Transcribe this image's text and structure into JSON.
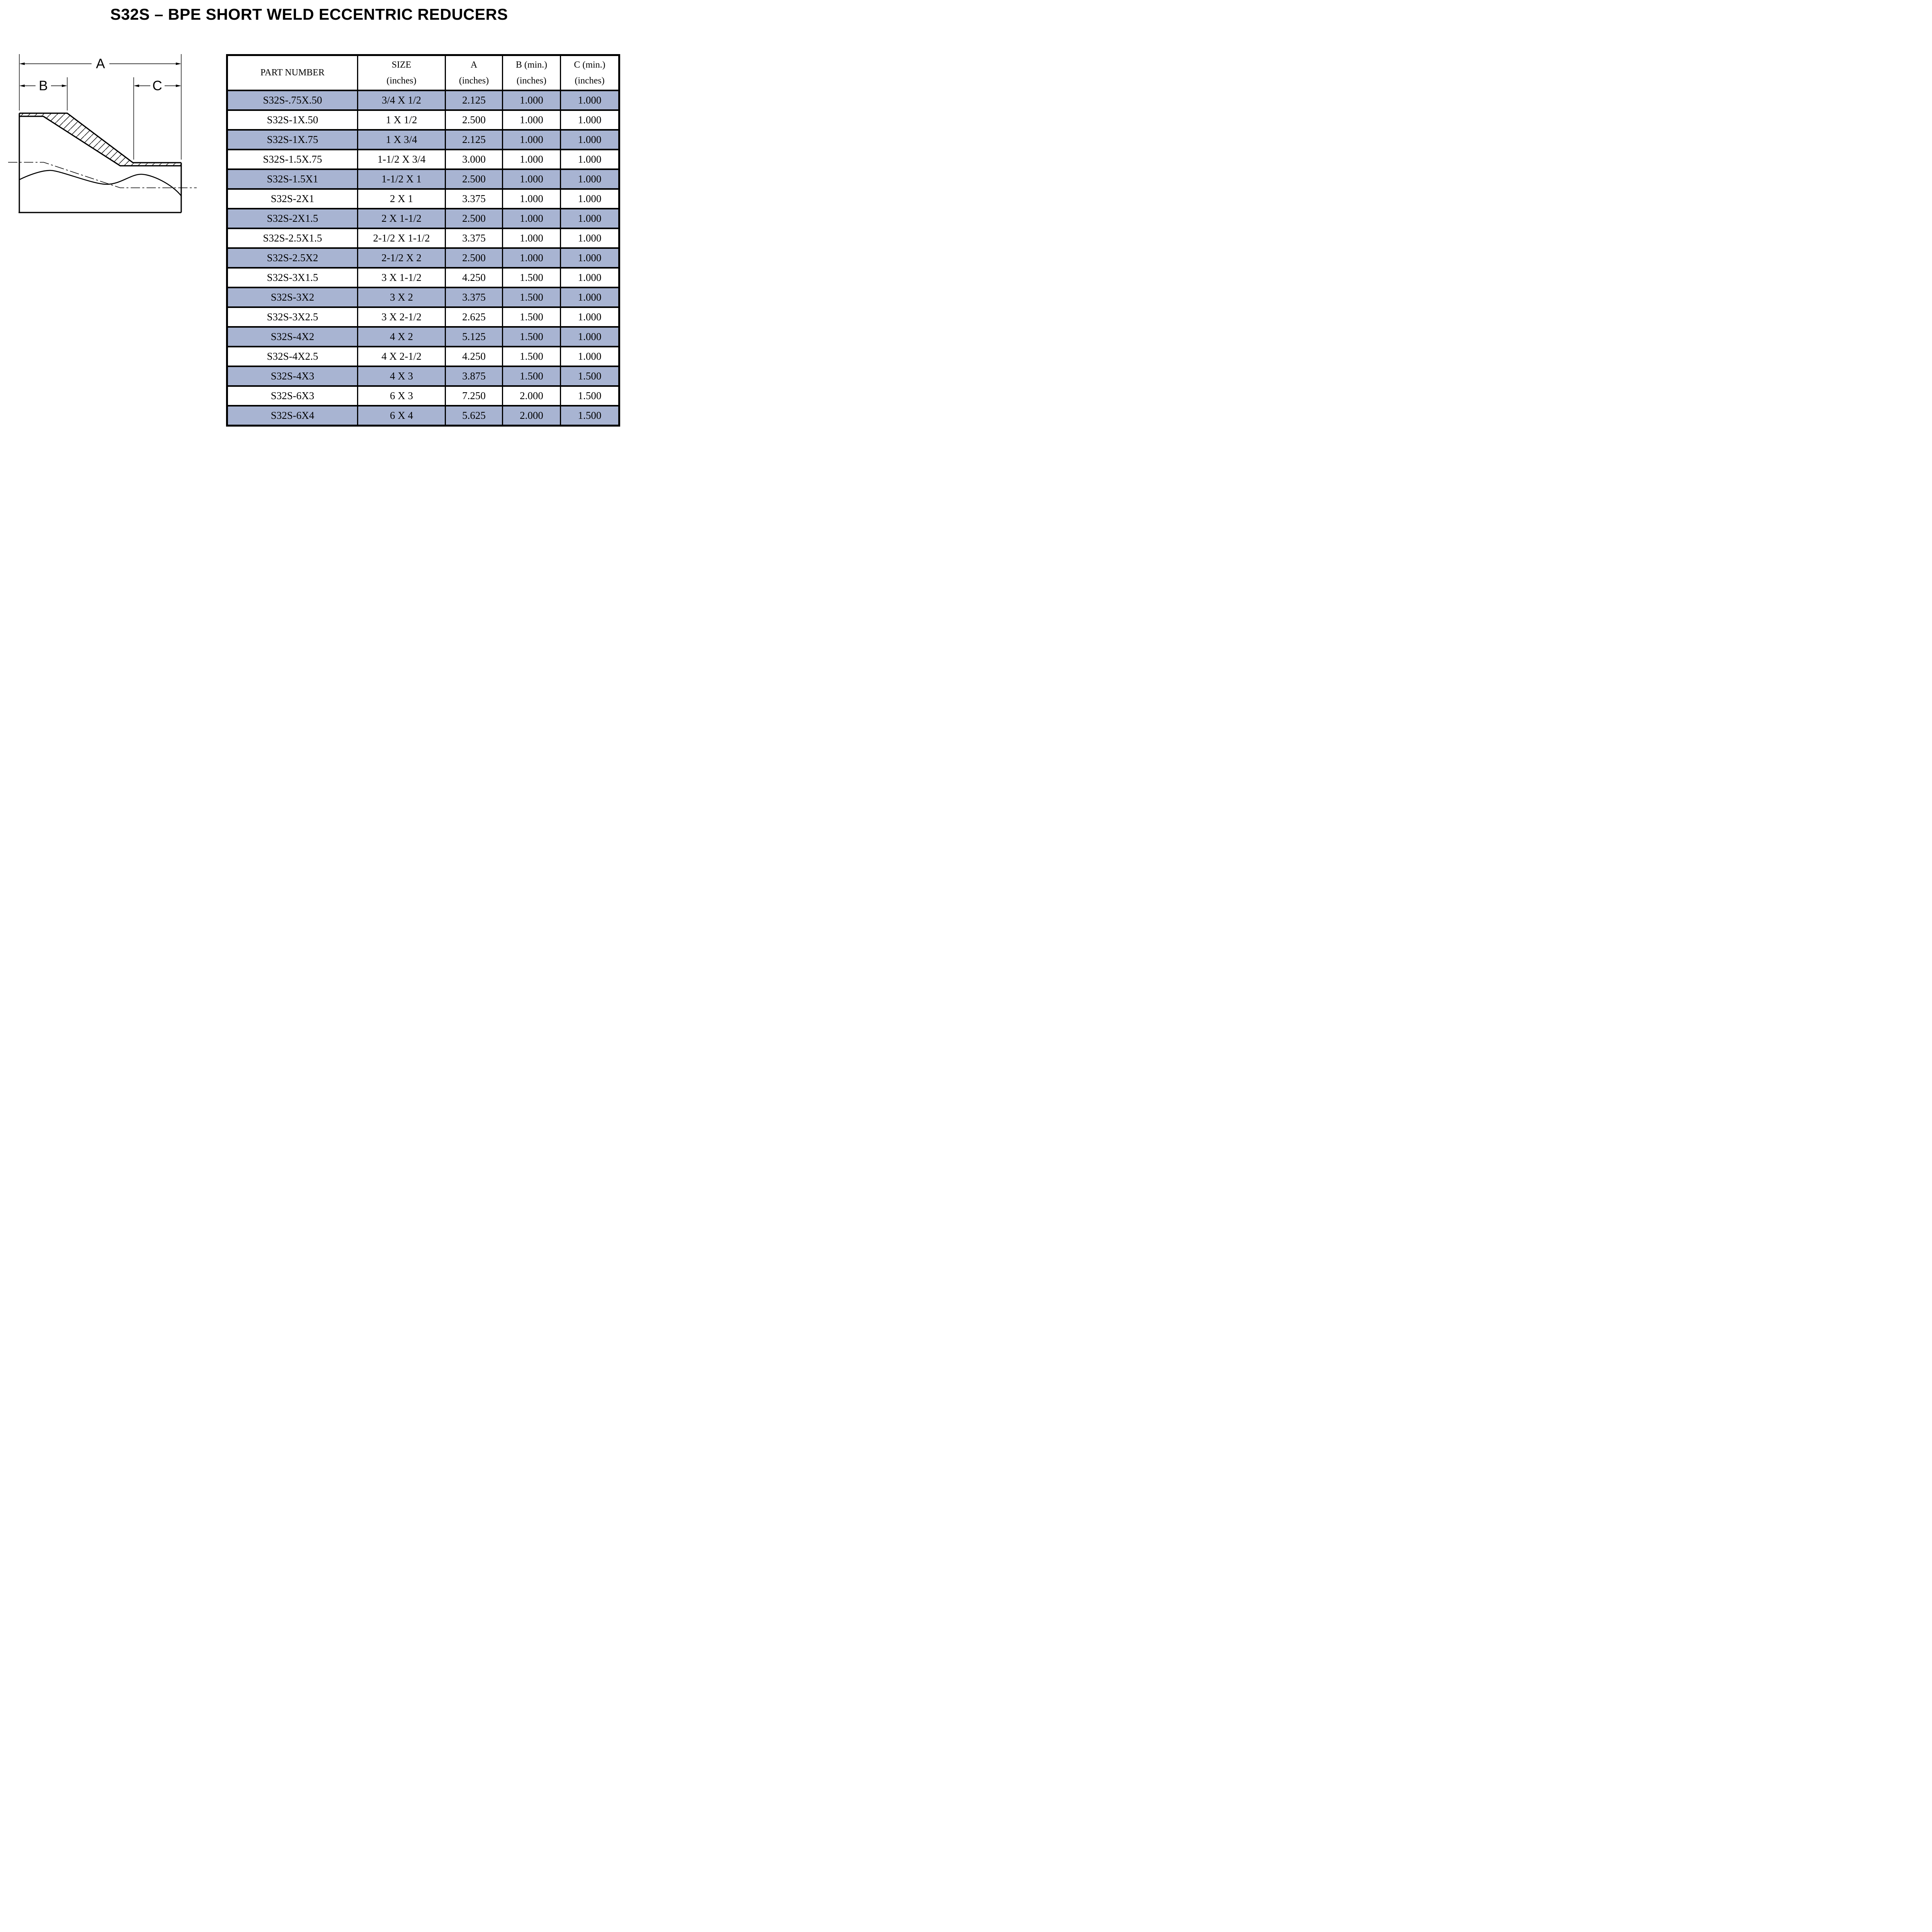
{
  "title": "S32S – BPE SHORT WELD ECCENTRIC REDUCERS",
  "diagram": {
    "label_a": "A",
    "label_b": "B",
    "label_c": "C"
  },
  "table": {
    "row_highlight_color": "#a8b4d2",
    "columns": [
      {
        "line1": "PART NUMBER",
        "line2": ""
      },
      {
        "line1": "SIZE",
        "line2": "(inches)"
      },
      {
        "line1": "A",
        "line2": "(inches)"
      },
      {
        "line1": "B (min.)",
        "line2": "(inches)"
      },
      {
        "line1": "C (min.)",
        "line2": "(inches)"
      }
    ],
    "rows": [
      [
        "S32S-.75X.50",
        "3/4 X 1/2",
        "2.125",
        "1.000",
        "1.000"
      ],
      [
        "S32S-1X.50",
        "1 X 1/2",
        "2.500",
        "1.000",
        "1.000"
      ],
      [
        "S32S-1X.75",
        "1 X 3/4",
        "2.125",
        "1.000",
        "1.000"
      ],
      [
        "S32S-1.5X.75",
        "1-1/2 X 3/4",
        "3.000",
        "1.000",
        "1.000"
      ],
      [
        "S32S-1.5X1",
        "1-1/2 X 1",
        "2.500",
        "1.000",
        "1.000"
      ],
      [
        "S32S-2X1",
        "2 X 1",
        "3.375",
        "1.000",
        "1.000"
      ],
      [
        "S32S-2X1.5",
        "2 X 1-1/2",
        "2.500",
        "1.000",
        "1.000"
      ],
      [
        "S32S-2.5X1.5",
        "2-1/2 X 1-1/2",
        "3.375",
        "1.000",
        "1.000"
      ],
      [
        "S32S-2.5X2",
        "2-1/2 X 2",
        "2.500",
        "1.000",
        "1.000"
      ],
      [
        "S32S-3X1.5",
        "3 X 1-1/2",
        "4.250",
        "1.500",
        "1.000"
      ],
      [
        "S32S-3X2",
        "3 X 2",
        "3.375",
        "1.500",
        "1.000"
      ],
      [
        "S32S-3X2.5",
        "3 X 2-1/2",
        "2.625",
        "1.500",
        "1.000"
      ],
      [
        "S32S-4X2",
        "4 X 2",
        "5.125",
        "1.500",
        "1.000"
      ],
      [
        "S32S-4X2.5",
        "4 X 2-1/2",
        "4.250",
        "1.500",
        "1.000"
      ],
      [
        "S32S-4X3",
        "4 X 3",
        "3.875",
        "1.500",
        "1.500"
      ],
      [
        "S32S-6X3",
        "6 X 3",
        "7.250",
        "2.000",
        "1.500"
      ],
      [
        "S32S-6X4",
        "6 X 4",
        "5.625",
        "2.000",
        "1.500"
      ]
    ]
  }
}
